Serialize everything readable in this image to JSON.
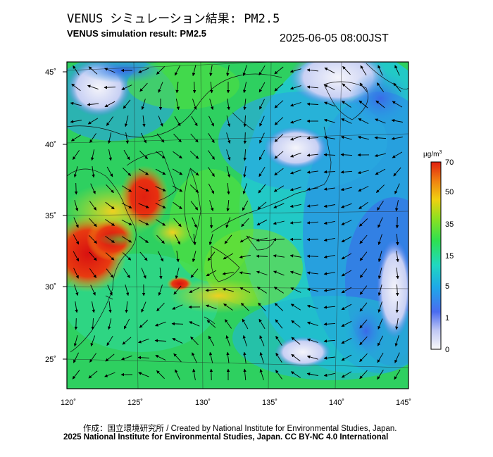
{
  "title_jp": "VENUS シミュレーション結果: PM2.5",
  "title_en": "VENUS simulation result: PM2.5",
  "timestamp": "2025-06-05 08:00JST",
  "lat_labels": [
    "45˚",
    "40˚",
    "35˚",
    "30˚",
    "25˚"
  ],
  "lon_labels": [
    "120˚",
    "125˚",
    "130˚",
    "135˚",
    "140˚",
    "145˚"
  ],
  "colorbar": {
    "unit_base": "µg/m",
    "unit_sup": "3",
    "ticks": [
      "70",
      "50",
      "35",
      "15",
      "5",
      "1",
      "0"
    ],
    "colors": [
      "#fafafa",
      "#4a6cf0",
      "#1ea8e8",
      "#20d8c0",
      "#2ee050",
      "#8ee020",
      "#f0d010",
      "#f08010",
      "#e02010"
    ]
  },
  "credit_line1": "作成：国立環境研究所 / Created by National Institute for Environmental Studies, Japan.",
  "credit_line2": "2025 National Institute for Environmental Studies, Japan. CC BY-NC 4.0 International"
}
